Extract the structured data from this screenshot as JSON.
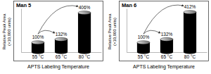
{
  "chart_data": [
    {
      "type": "bar",
      "title": "Man 5",
      "categories": [
        "55 °C",
        "65 °C",
        "80 °C"
      ],
      "values": [
        100,
        132,
        406
      ],
      "value_labels": [
        "100%",
        "132%",
        "406%"
      ],
      "color": "#000000",
      "xlabel": "APTS Labeling Temperature",
      "ylabel": [
        "Relative Peak Area",
        "(×10,000 units)"
      ],
      "ylim": [
        0,
        450
      ],
      "data_labels": true,
      "tick_labels": "x"
    },
    {
      "type": "bar",
      "title": "Man 6",
      "categories": [
        "55 °C",
        "65 °C",
        "80 °C"
      ],
      "values": [
        100,
        132,
        412
      ],
      "value_labels": [
        "100%",
        "132%",
        "412%"
      ],
      "color": "#000000",
      "xlabel": "APTS Labeling Temperature",
      "ylabel": [
        "Relative Peak Area",
        "(×10,000 units)"
      ],
      "ylim": [
        0,
        450
      ],
      "data_labels": true,
      "tick_labels": "x"
    }
  ]
}
